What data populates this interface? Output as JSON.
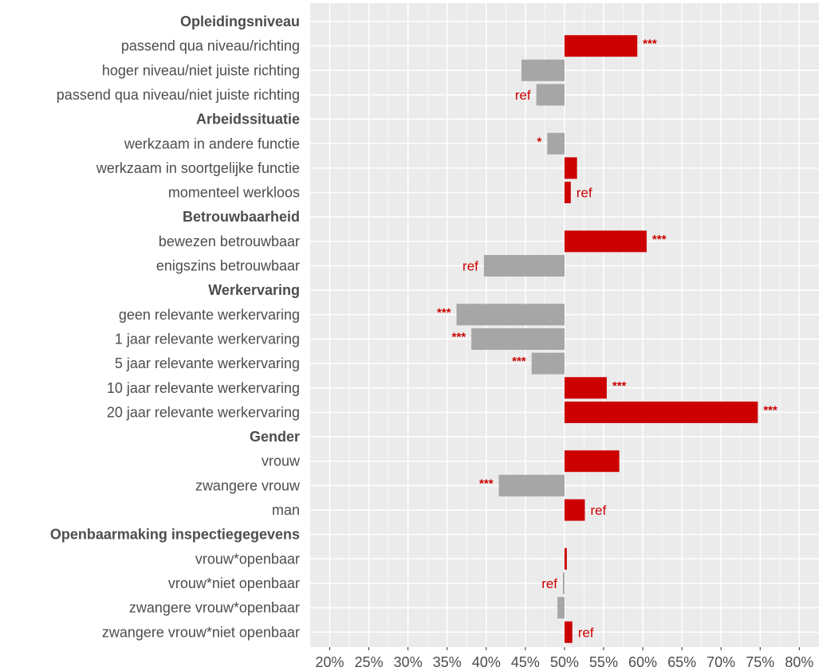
{
  "chart_data": {
    "type": "bar",
    "orientation": "horizontal",
    "baseline": 50,
    "xlim": [
      17.5,
      82.5
    ],
    "x_ticks": [
      20,
      25,
      30,
      35,
      40,
      45,
      50,
      55,
      60,
      65,
      70,
      75,
      80
    ],
    "x_tick_labels": [
      "20%",
      "25%",
      "30%",
      "35%",
      "40%",
      "45%",
      "50%",
      "55%",
      "60%",
      "65%",
      "70%",
      "75%",
      "80%"
    ],
    "grid": true,
    "colors": {
      "above": "#cc0000",
      "below": "#a6a6a6",
      "annotation": "#cc0000",
      "panel": "#ebebeb",
      "grid": "#ffffff",
      "text": "#4d4d4d"
    },
    "rows": [
      {
        "label": "Opleidingsniveau",
        "kind": "group"
      },
      {
        "label": "passend qua niveau/richting",
        "kind": "item",
        "value": 59.3,
        "annotation": "***"
      },
      {
        "label": "hoger niveau/niet juiste richting",
        "kind": "item",
        "value": 44.5,
        "annotation": ""
      },
      {
        "label": "passend qua niveau/niet juiste richting",
        "kind": "item",
        "value": 46.4,
        "annotation": "ref"
      },
      {
        "label": "Arbeidssituatie",
        "kind": "group"
      },
      {
        "label": "werkzaam in andere functie",
        "kind": "item",
        "value": 47.8,
        "annotation": "*"
      },
      {
        "label": "werkzaam in soortgelijke functie",
        "kind": "item",
        "value": 51.6,
        "annotation": ""
      },
      {
        "label": "momenteel werkloos",
        "kind": "item",
        "value": 50.8,
        "annotation": "ref"
      },
      {
        "label": "Betrouwbaarheid",
        "kind": "group"
      },
      {
        "label": "bewezen betrouwbaar",
        "kind": "item",
        "value": 60.5,
        "annotation": "***"
      },
      {
        "label": "enigszins betrouwbaar",
        "kind": "item",
        "value": 39.7,
        "annotation": "ref"
      },
      {
        "label": "Werkervaring",
        "kind": "group"
      },
      {
        "label": "geen relevante werkervaring",
        "kind": "item",
        "value": 36.2,
        "annotation": "***"
      },
      {
        "label": "1 jaar relevante werkervaring",
        "kind": "item",
        "value": 38.1,
        "annotation": "***"
      },
      {
        "label": "5 jaar relevante werkervaring",
        "kind": "item",
        "value": 45.8,
        "annotation": "***"
      },
      {
        "label": "10 jaar relevante werkervaring",
        "kind": "item",
        "value": 55.4,
        "annotation": "***"
      },
      {
        "label": "20 jaar relevante werkervaring",
        "kind": "item",
        "value": 74.7,
        "annotation": "***"
      },
      {
        "label": "Gender",
        "kind": "group"
      },
      {
        "label": "vrouw",
        "kind": "item",
        "value": 57.0,
        "annotation": ""
      },
      {
        "label": "zwangere vrouw",
        "kind": "item",
        "value": 41.6,
        "annotation": "***"
      },
      {
        "label": "man",
        "kind": "item",
        "value": 52.6,
        "annotation": "ref"
      },
      {
        "label": "Openbaarmaking inspectiegegevens",
        "kind": "group"
      },
      {
        "label": "vrouw*openbaar",
        "kind": "item",
        "value": 50.3,
        "annotation": ""
      },
      {
        "label": "vrouw*niet openbaar",
        "kind": "item",
        "value": 49.8,
        "annotation": "ref"
      },
      {
        "label": "zwangere vrouw*openbaar",
        "kind": "item",
        "value": 49.1,
        "annotation": ""
      },
      {
        "label": "zwangere vrouw*niet openbaar",
        "kind": "item",
        "value": 51.0,
        "annotation": "ref"
      }
    ]
  }
}
